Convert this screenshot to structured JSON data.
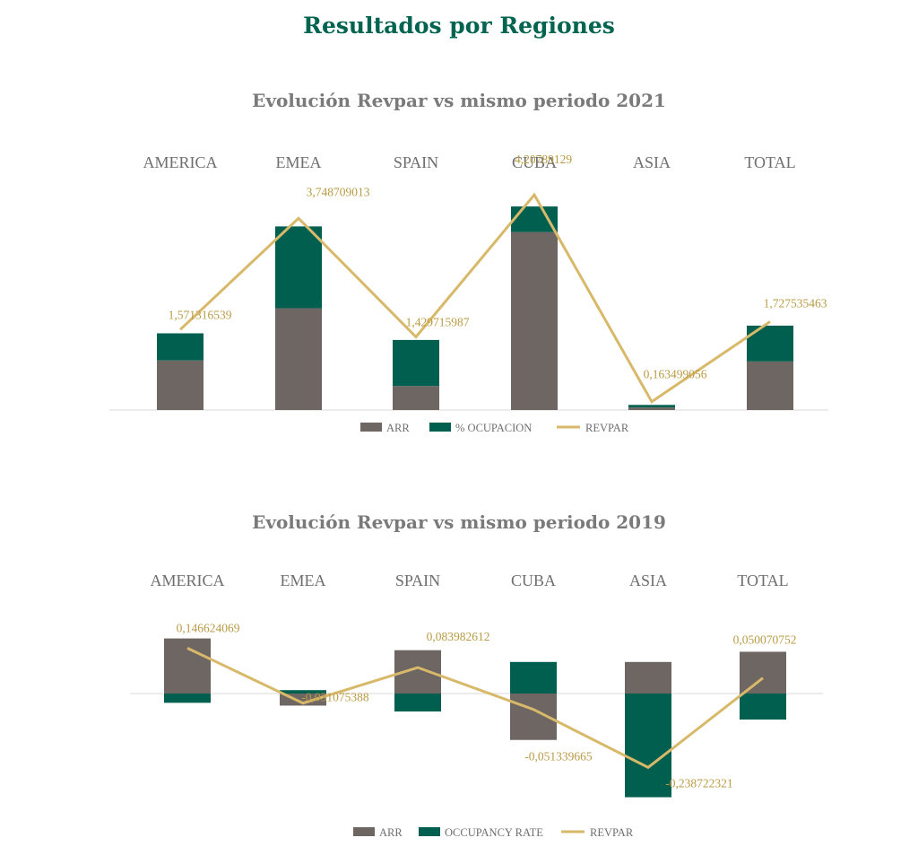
{
  "page": {
    "title": "Resultados por Regiones"
  },
  "colors": {
    "title": "#006450",
    "arr": "#6e6663",
    "occupancy": "#005f4e",
    "revpar": "#d8b96a",
    "label": "#b99a45",
    "axis": "#e6e6e6"
  },
  "chart_data": [
    {
      "type": "bar",
      "stacked": true,
      "title": "Evolución Revpar vs mismo periodo 2021",
      "categories": [
        "AMERICA",
        "EMEA",
        "SPAIN",
        "CUBA",
        "ASIA",
        "TOTAL"
      ],
      "series": [
        {
          "name": "ARR",
          "kind": "bar",
          "values": [
            0.97,
            1.99,
            0.47,
            3.48,
            0.05,
            0.95
          ]
        },
        {
          "name": "% OCUPACION",
          "kind": "bar",
          "values": [
            0.53,
            1.6,
            0.9,
            0.5,
            0.05,
            0.7
          ]
        },
        {
          "name": "REVPAR",
          "kind": "line",
          "values": [
            1.571316539,
            3.748709013,
            1.429715987,
            4.20789129,
            0.163499056,
            1.727535463
          ]
        }
      ],
      "data_labels": [
        "1,571316539",
        "3,748709013",
        "1,429715987",
        "4,20789129",
        "0,163499056",
        "1,727535463"
      ],
      "ylim": [
        0,
        4.6
      ],
      "grid": false,
      "legend_position": "bottom"
    },
    {
      "type": "bar",
      "stacked": true,
      "title": "Evolución Revpar vs mismo periodo 2019",
      "categories": [
        "AMERICA",
        "EMEA",
        "SPAIN",
        "CUBA",
        "ASIA",
        "TOTAL"
      ],
      "series": [
        {
          "name": "ARR",
          "kind": "bar",
          "values": [
            0.178,
            -0.039,
            0.14,
            -0.15,
            0.102,
            0.135
          ]
        },
        {
          "name": "OCCUPANCY RATE",
          "kind": "bar",
          "values": [
            -0.03,
            0.011,
            -0.058,
            0.102,
            -0.335,
            -0.084
          ]
        },
        {
          "name": "REVPAR",
          "kind": "line",
          "values": [
            0.146624069,
            -0.031075388,
            0.083982612,
            -0.051339665,
            -0.238722321,
            0.050070752
          ]
        }
      ],
      "data_labels": [
        "0,146624069",
        "-0,031075388",
        "0,083982612",
        "-0,051339665",
        "-0,238722321",
        "0,050070752"
      ],
      "ylim": [
        -0.36,
        0.2
      ],
      "grid": false,
      "legend_position": "bottom"
    }
  ]
}
